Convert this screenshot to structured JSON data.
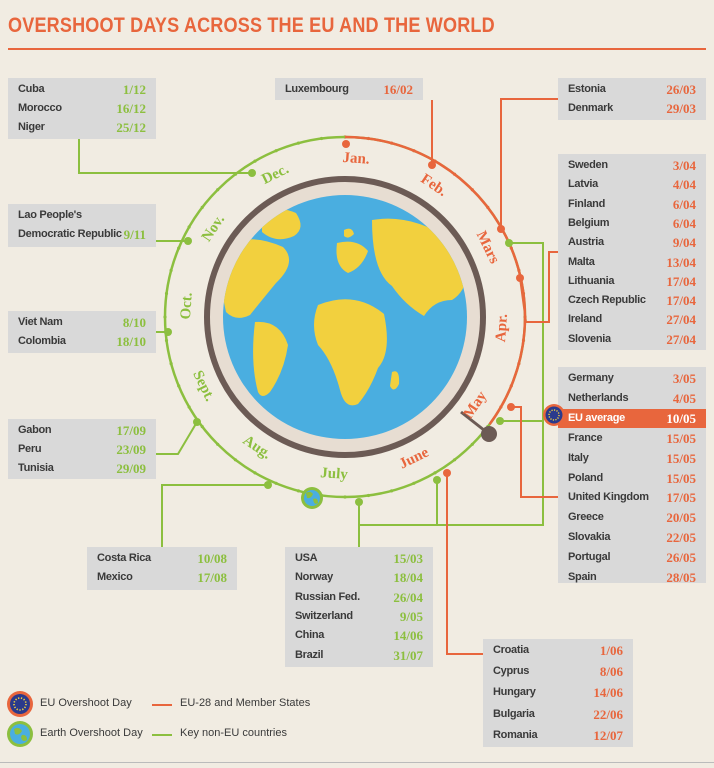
{
  "title": "OVERSHOOT DAYS ACROSS THE EU AND THE WORLD",
  "colors": {
    "eu": "#e8663d",
    "world": "#8cbf3f",
    "ring": "#6c5b55",
    "ocean": "#4aaee0",
    "land": "#f2d03e"
  },
  "months": [
    "Jan.",
    "Feb.",
    "Mars",
    "Apr.",
    "May",
    "June",
    "July",
    "Aug.",
    "Sept.",
    "Oct.",
    "Nov.",
    "Dec."
  ],
  "boxes": {
    "cuba_box": [
      {
        "country": "Cuba",
        "date": "1/12"
      },
      {
        "country": "Morocco",
        "date": "16/12"
      },
      {
        "country": "Niger",
        "date": "25/12"
      }
    ],
    "lao_box": [
      {
        "country": "Lao People's",
        "date": ""
      },
      {
        "country": "Democratic Republic",
        "date": "9/11"
      }
    ],
    "vietnam_box": [
      {
        "country": "Viet Nam",
        "date": "8/10"
      },
      {
        "country": "Colombia",
        "date": "18/10"
      }
    ],
    "gabon_box": [
      {
        "country": "Gabon",
        "date": "17/09"
      },
      {
        "country": "Peru",
        "date": "23/09"
      },
      {
        "country": "Tunisia",
        "date": "29/09"
      }
    ],
    "costa_box": [
      {
        "country": "Costa Rica",
        "date": "10/08"
      },
      {
        "country": "Mexico",
        "date": "17/08"
      }
    ],
    "usa_box": [
      {
        "country": "USA",
        "date": "15/03"
      },
      {
        "country": "Norway",
        "date": "18/04"
      },
      {
        "country": "Russian Fed.",
        "date": "26/04"
      },
      {
        "country": "Switzerland",
        "date": "9/05"
      },
      {
        "country": "China",
        "date": "14/06"
      },
      {
        "country": "Brazil",
        "date": "31/07"
      }
    ],
    "lux_box": [
      {
        "country": "Luxembourg",
        "date": "16/02"
      }
    ],
    "estonia_box": [
      {
        "country": "Estonia",
        "date": "26/03"
      },
      {
        "country": "Denmark",
        "date": "29/03"
      }
    ],
    "sweden_box": [
      {
        "country": "Sweden",
        "date": "3/04"
      },
      {
        "country": "Latvia",
        "date": "4/04"
      },
      {
        "country": "Finland",
        "date": "6/04"
      },
      {
        "country": "Belgium",
        "date": "6/04"
      },
      {
        "country": "Austria",
        "date": "9/04"
      },
      {
        "country": "Malta",
        "date": "13/04"
      },
      {
        "country": "Lithuania",
        "date": "17/04"
      },
      {
        "country": "Czech Republic",
        "date": "17/04"
      },
      {
        "country": "Ireland",
        "date": "27/04"
      },
      {
        "country": "Slovenia",
        "date": "27/04"
      }
    ],
    "germany_box": [
      {
        "country": "Germany",
        "date": "3/05"
      },
      {
        "country": "Netherlands",
        "date": "4/05"
      },
      {
        "country": "EU average",
        "date": "10/05"
      },
      {
        "country": "France",
        "date": "15/05"
      },
      {
        "country": "Italy",
        "date": "15/05"
      },
      {
        "country": "Poland",
        "date": "15/05"
      },
      {
        "country": "United Kingdom",
        "date": "17/05"
      },
      {
        "country": "Greece",
        "date": "20/05"
      },
      {
        "country": "Slovakia",
        "date": "22/05"
      },
      {
        "country": "Portugal",
        "date": "26/05"
      },
      {
        "country": "Spain",
        "date": "28/05"
      }
    ],
    "croatia_box": [
      {
        "country": "Croatia",
        "date": "1/06"
      },
      {
        "country": "Cyprus",
        "date": "8/06"
      },
      {
        "country": "Hungary",
        "date": "14/06"
      },
      {
        "country": "Bulgaria",
        "date": "22/06"
      },
      {
        "country": "Romania",
        "date": "12/07"
      }
    ]
  },
  "legend": {
    "eu_day": "EU Overshoot Day",
    "earth_day": "Earth Overshoot Day",
    "eu_members": "EU-28 and Member States",
    "non_eu": "Key non-EU countries"
  }
}
